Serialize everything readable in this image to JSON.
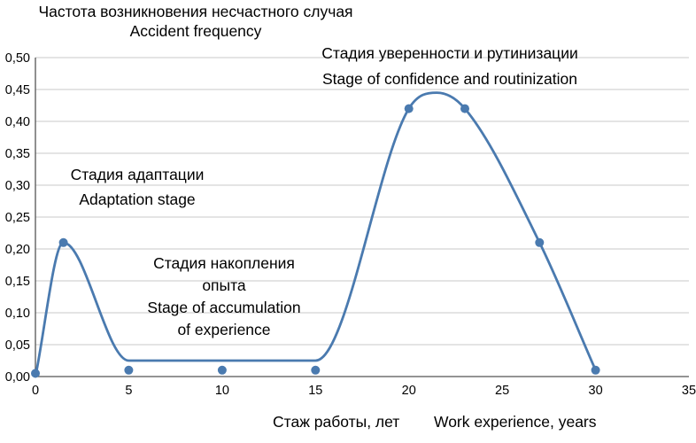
{
  "chart_data": {
    "type": "line",
    "title": {
      "ru": "Частота возникновения несчастного случая",
      "en": "Accident frequency"
    },
    "xlabel": {
      "ru": "Стаж работы, лет",
      "en": "Work experience, years"
    },
    "ylabel": "",
    "xlim": [
      0,
      35
    ],
    "ylim": [
      0,
      0.5
    ],
    "x_ticks": [
      0,
      5,
      10,
      15,
      20,
      25,
      30,
      35
    ],
    "y_ticks": [
      {
        "v": 0.0,
        "label": "0,00"
      },
      {
        "v": 0.05,
        "label": "0,05"
      },
      {
        "v": 0.1,
        "label": "0,10"
      },
      {
        "v": 0.15,
        "label": "0,15"
      },
      {
        "v": 0.2,
        "label": "0,20"
      },
      {
        "v": 0.25,
        "label": "0,25"
      },
      {
        "v": 0.3,
        "label": "0,30"
      },
      {
        "v": 0.35,
        "label": "0,35"
      },
      {
        "v": 0.4,
        "label": "0,40"
      },
      {
        "v": 0.45,
        "label": "0,45"
      },
      {
        "v": 0.5,
        "label": "0,50"
      }
    ],
    "grid": "horizontal",
    "legend": "none",
    "colors": {
      "line": "#4a7aaf",
      "grid": "#c8c8c8",
      "axis": "#555555",
      "text": "#000000"
    },
    "series": [
      {
        "marker_points": [
          [
            0,
            0.005
          ],
          [
            1.5,
            0.21
          ],
          [
            5,
            0.01
          ],
          [
            10,
            0.01
          ],
          [
            15,
            0.01
          ],
          [
            20,
            0.42
          ],
          [
            23,
            0.42
          ],
          [
            27,
            0.21
          ],
          [
            30,
            0.01
          ]
        ],
        "line_points": [
          [
            0,
            0.0
          ],
          [
            1.5,
            0.21
          ],
          [
            5,
            0.025
          ],
          [
            10,
            0.025
          ],
          [
            15,
            0.025
          ],
          [
            20,
            0.42
          ],
          [
            21.5,
            0.445
          ],
          [
            23,
            0.42
          ],
          [
            27,
            0.21
          ],
          [
            30,
            0.01
          ]
        ]
      }
    ],
    "annotations": {
      "adaptation": {
        "lines": [
          "Стадия адаптации",
          "Adaptation stage"
        ]
      },
      "accumulation": {
        "lines": [
          "Стадия накопления",
          "опыта",
          "Stage of accumulation",
          "of experience"
        ]
      },
      "confidence": {
        "lines": [
          "Стадия уверенности и рутинизации",
          "Stage of confidence and routinization"
        ]
      }
    }
  }
}
